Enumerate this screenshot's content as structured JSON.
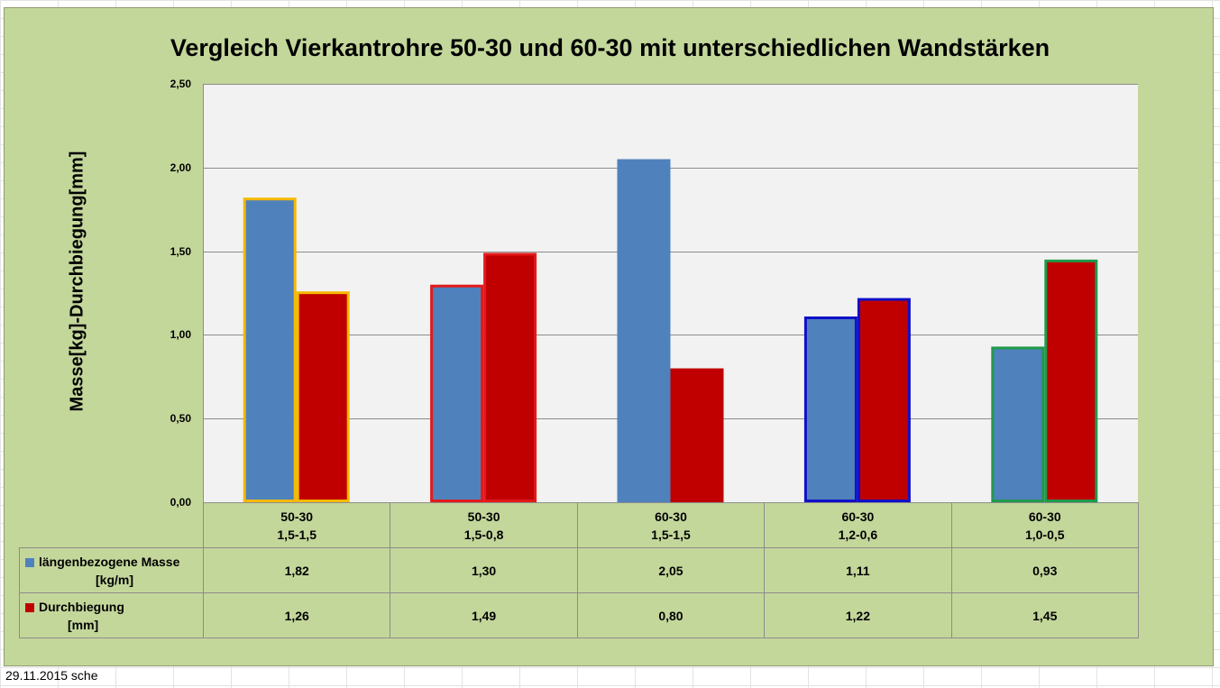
{
  "footer": "29.11.2015 sche",
  "chart_data": {
    "type": "bar",
    "title": "Vergleich Vierkantrohre 50-30 und 60-30 mit unterschiedlichen  Wandstärken",
    "ylabel": "Masse[kg]-Durchbiegung[mm]",
    "xlabel": "",
    "ylim": [
      0,
      2.5
    ],
    "yticks": [
      "0,00",
      "0,50",
      "1,00",
      "1,50",
      "2,00",
      "2,50"
    ],
    "ytick_values": [
      0,
      0.5,
      1.0,
      1.5,
      2.0,
      2.5
    ],
    "grid": true,
    "categories": [
      {
        "line1": "50-30",
        "line2": "1,5-1,5",
        "outline": "#f5b800"
      },
      {
        "line1": "50-30",
        "line2": "1,5-0,8",
        "outline": "#e31a1a"
      },
      {
        "line1": "60-30",
        "line2": "1,5-1,5",
        "outline": null
      },
      {
        "line1": "60-30",
        "line2": "1,2-0,6",
        "outline": "#1010c8"
      },
      {
        "line1": "60-30",
        "line2": "1,0-0,5",
        "outline": "#1f9a4a"
      }
    ],
    "series": [
      {
        "name_line1": "längenbezogene Masse",
        "name_line2": "[kg/m]",
        "color": "#4f81bd",
        "values": [
          1.82,
          1.3,
          2.05,
          1.11,
          0.93
        ],
        "labels": [
          "1,82",
          "1,30",
          "2,05",
          "1,11",
          "0,93"
        ]
      },
      {
        "name_line1": "Durchbiegung",
        "name_line2": "[mm]",
        "color": "#c00000",
        "values": [
          1.26,
          1.49,
          0.8,
          1.22,
          1.45
        ],
        "labels": [
          "1,26",
          "1,49",
          "0,80",
          "1,22",
          "1,45"
        ]
      }
    ]
  }
}
